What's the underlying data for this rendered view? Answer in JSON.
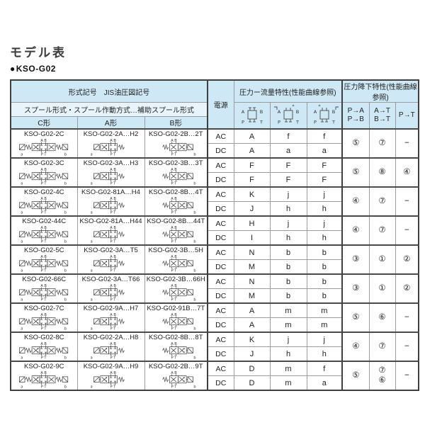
{
  "page": {
    "title": "モデル表",
    "bullet": "●",
    "subtitle": "KSO-G02"
  },
  "table": {
    "header": {
      "left_title": "形式記号　JIS油圧図記号",
      "left_subtitle": "スプール形式・スプール作動方式…補助スプール形式",
      "col_c": "C形",
      "col_a": "A形",
      "col_b": "B形",
      "power": "電源",
      "flow_title": "圧力ー流量特性(性能曲線参照)",
      "drop_title": "圧力降下特性(性能曲線参照)",
      "drop_col1": "P→A\nP→B",
      "drop_col2": "A→T\nB→T",
      "drop_col3": "P→T",
      "ac_label": "AC",
      "dc_label": "DC"
    },
    "valve_labels": {
      "a_port": "A",
      "b_port": "B",
      "p_port": "P",
      "t_port": "T",
      "sol_a": "a",
      "sol_b": "b"
    },
    "rows": [
      {
        "c": "KSO-G02-2C",
        "a": "KSO-G02-2A…H2",
        "b": "KSO-G02-2B…2T",
        "ac": [
          "A",
          "f",
          "f"
        ],
        "dc": [
          "A",
          "a",
          "a"
        ],
        "drops": [
          "⑤",
          "⑦",
          "−"
        ]
      },
      {
        "c": "KSO-G02-3C",
        "a": "KSO-G02-3A…H3",
        "b": "KSO-G02-3B…3T",
        "ac": [
          "F",
          "F",
          "F"
        ],
        "dc": [
          "F",
          "F",
          "F"
        ],
        "drops": [
          "⑤",
          "⑧",
          "④"
        ]
      },
      {
        "c": "KSO-G02-4C",
        "a": "KSO-G02-81A…H4",
        "b": "KSO-G02-8B…4T",
        "ac": [
          "K",
          "j",
          "j"
        ],
        "dc": [
          "J",
          "h",
          "h"
        ],
        "drops": [
          "④",
          "⑦",
          "−"
        ]
      },
      {
        "c": "KSO-G02-44C",
        "a": "KSO-G02-81A…H44",
        "b": "KSO-G02-8B…44T",
        "ac": [
          "H",
          "j",
          "j"
        ],
        "dc": [
          "I",
          "h",
          "h"
        ],
        "drops": [
          "④",
          "⑦",
          "−"
        ]
      },
      {
        "c": "KSO-G02-5C",
        "a": "KSO-G02-3A…T5",
        "b": "KSO-G02-3B…5H",
        "ac": [
          "N",
          "b",
          "b"
        ],
        "dc": [
          "M",
          "b",
          "b"
        ],
        "drops": [
          "③",
          "①",
          "②"
        ]
      },
      {
        "c": "KSO-G02-66C",
        "a": "KSO-G02-3A…T66",
        "b": "KSO-G02-3B…66H",
        "ac": [
          "N",
          "b",
          "b"
        ],
        "dc": [
          "M",
          "b",
          "b"
        ],
        "drops": [
          "③",
          "①",
          "②"
        ]
      },
      {
        "c": "KSO-G02-7C",
        "a": "KSO-G02-9A…H7",
        "b": "KSO-G02-91B…7T",
        "ac": [
          "A",
          "m",
          "m"
        ],
        "dc": [
          "A",
          "m",
          "m"
        ],
        "drops": [
          "⑤",
          "⑥",
          "−"
        ]
      },
      {
        "c": "KSO-G02-8C",
        "a": "KSO-G02-2A…H8",
        "b": "KSO-G02-8B…8T",
        "ac": [
          "K",
          "j",
          "j"
        ],
        "dc": [
          "J",
          "h",
          "h"
        ],
        "drops": [
          "④",
          "⑦",
          "−"
        ]
      },
      {
        "c": "KSO-G02-9C",
        "a": "KSO-G02-9A…H9",
        "b": "KSO-G02-2B…9T",
        "ac": [
          "D",
          "m",
          "f"
        ],
        "dc": [
          "D",
          "m",
          "a"
        ],
        "drops": [
          "⑤",
          "⑦\n⑥",
          "−"
        ]
      }
    ],
    "colors": {
      "header_bg": "#cfe8f5",
      "header_bg_light": "#e8f4fb",
      "border_thin": "#9b9b9b",
      "border_thick": "#3f3f3f",
      "text": "#2b2b2b"
    }
  }
}
